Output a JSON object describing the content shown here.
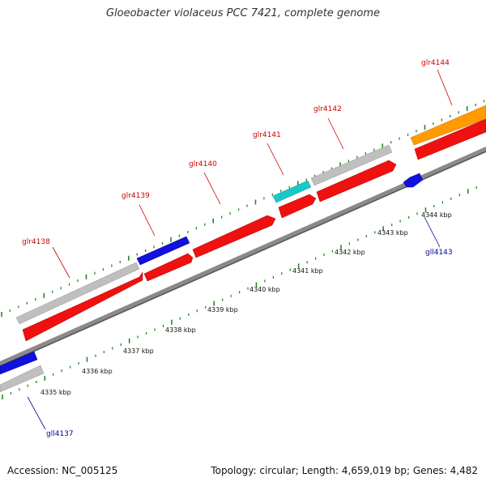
{
  "title": "Gloeobacter violaceus PCC 7421, complete genome",
  "footer": {
    "accession": "Accession: NC_005125",
    "topology": "Topology: circular; Length: 4,659,019 bp; Genes: 4,482"
  },
  "colors": {
    "backbone": "#777777",
    "tick": "#228b22",
    "label_forward": "#cc0000",
    "label_reverse": "#000099",
    "red": "#f01010",
    "grey": "#bdbdbd",
    "blue": "#1010e0",
    "cyan": "#18c8c8",
    "orange": "#ff9900"
  },
  "scale_kbp": [
    "4335 kbp",
    "4336 kbp",
    "4337 kbp",
    "4338 kbp",
    "4339 kbp",
    "4340 kbp",
    "4341 kbp",
    "4342 kbp",
    "4343 kbp",
    "4344 kbp"
  ],
  "genes": [
    {
      "label": "gll4137",
      "strand": "reverse"
    },
    {
      "label": "glr4138",
      "strand": "forward"
    },
    {
      "label": "glr4139",
      "strand": "forward"
    },
    {
      "label": "glr4140",
      "strand": "forward"
    },
    {
      "label": "glr4141",
      "strand": "forward"
    },
    {
      "label": "glr4142",
      "strand": "forward"
    },
    {
      "label": "gll4143",
      "strand": "reverse"
    },
    {
      "label": "glr4144",
      "strand": "forward"
    }
  ]
}
